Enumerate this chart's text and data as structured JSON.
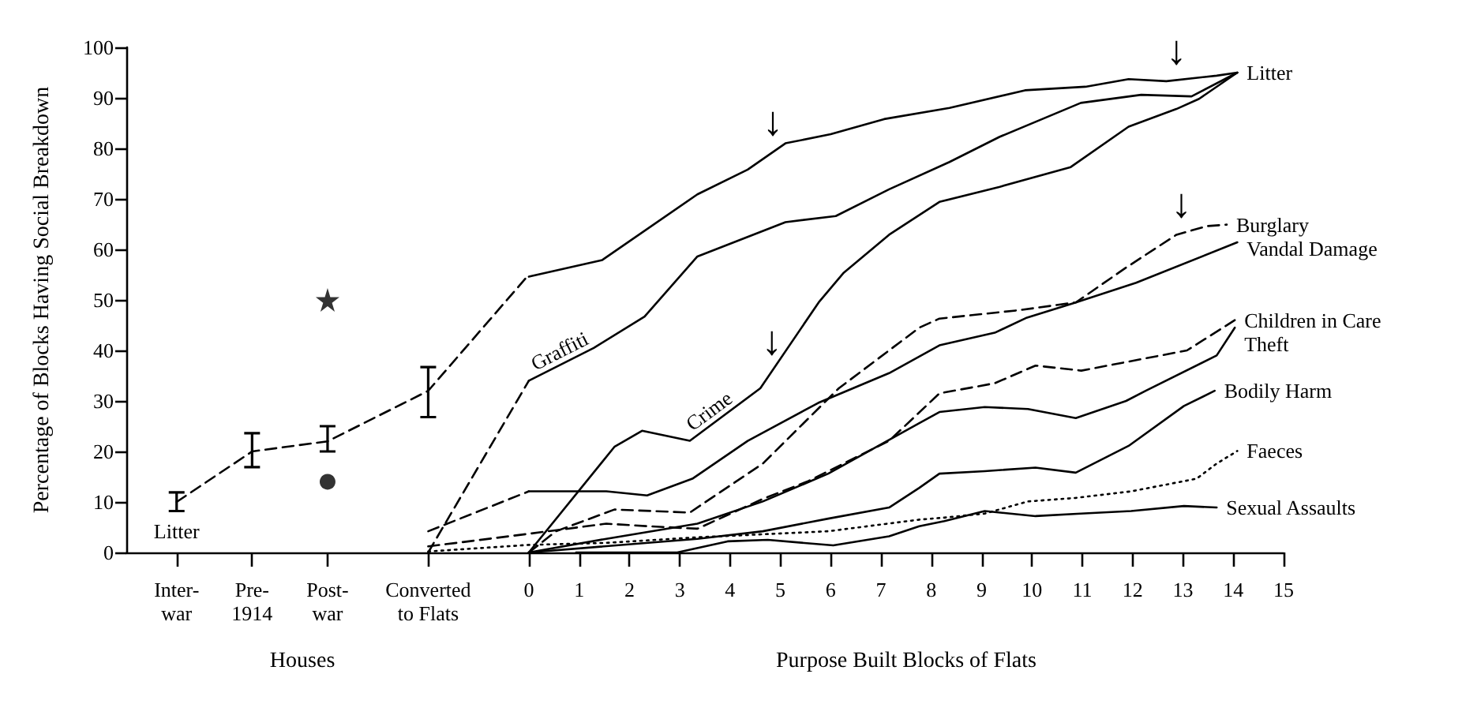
{
  "chart_data": {
    "type": "line",
    "ylabel": "Percentage of Blocks Having Social Breakdown",
    "xlabel": "Purpose Built Blocks of Flats",
    "xlim": [
      -8,
      15
    ],
    "xticks": [
      {
        "value": -7,
        "label": "Inter-\nwar"
      },
      {
        "value": -5.5,
        "label": "Pre-\n1914"
      },
      {
        "value": -4,
        "label": "Post-\nwar"
      },
      {
        "value": -2,
        "label": "Converted\nto Flats"
      },
      0,
      1,
      2,
      3,
      4,
      5,
      6,
      7,
      8,
      9,
      10,
      11,
      12,
      13,
      14,
      15
    ],
    "ylim": [
      0,
      100
    ],
    "yticks": [
      0,
      10,
      20,
      30,
      40,
      50,
      60,
      70,
      80,
      90,
      100
    ],
    "series": [
      {
        "color": "#000000",
        "line_style": "dashed",
        "x": [
          -7,
          -5.5,
          -4,
          -2,
          0
        ],
        "values": [
          10,
          20,
          22,
          32,
          55
        ],
        "errors": [
          [
            8.2,
            11.9
          ],
          [
            16.9,
            23.6
          ],
          [
            20,
            25
          ],
          [
            26.8,
            36.7
          ],
          null
        ]
      },
      {
        "type": "scatter",
        "color": "#000000",
        "marker": "star",
        "x": [
          -4
        ],
        "values": [
          50
        ]
      },
      {
        "type": "scatter",
        "color": "#000000",
        "marker": "circle",
        "x": [
          -4
        ],
        "values": [
          14
        ]
      },
      {
        "color": "#000000",
        "line_style": "dashed",
        "marker": "none",
        "x": [
          -2,
          0
        ],
        "values": [
          0,
          34
        ]
      },
      {
        "color": "#000000",
        "line_style": "dashed",
        "marker": "none",
        "x": [
          -2,
          0
        ],
        "values": [
          4.2,
          12.1
        ]
      },
      {
        "name": "Litter",
        "color": "#000000",
        "line_style": "solid",
        "marker": "none",
        "x": [
          0,
          1.46,
          3.35,
          4.35,
          5.1,
          6.0,
          7.06,
          8.36,
          9.86,
          11.06,
          11.92,
          12.67,
          13.67,
          14.08
        ],
        "values": [
          54.6,
          57.9,
          70.9,
          75.8,
          81,
          82.8,
          85.8,
          88,
          91.5,
          92.2,
          93.7,
          93.3,
          94.4,
          95
        ]
      },
      {
        "color": "#000000",
        "line_style": "solid",
        "marker": "none",
        "x": [
          0,
          1.29,
          2.3,
          3.35,
          5.1,
          6.1,
          7.16,
          8.36,
          9.36,
          10.97,
          12.17,
          13.17,
          14.08
        ],
        "values": [
          34,
          40.5,
          46.7,
          58.6,
          65.4,
          66.6,
          71.9,
          77.3,
          82.3,
          89,
          90.6,
          90.3,
          95
        ]
      },
      {
        "color": "#000000",
        "line_style": "solid",
        "marker": "none",
        "x": [
          0,
          1.7,
          2.25,
          3.2,
          4.6,
          5.76,
          6.26,
          7.16,
          8.16,
          9.36,
          10.77,
          11.92,
          12.87,
          13.32,
          14.08
        ],
        "values": [
          0,
          20.9,
          24.1,
          22.1,
          32.5,
          49.5,
          55.4,
          62.9,
          69.4,
          72.4,
          76.3,
          84.3,
          87.8,
          89.8,
          95
        ]
      },
      {
        "name": "Burglary",
        "color": "#000000",
        "line_style": "dashed",
        "marker": "none",
        "x": [
          0,
          0.54,
          1.7,
          3.2,
          4.65,
          6.16,
          7.76,
          8.16,
          9.77,
          10.87,
          11.87,
          12.87,
          13.47,
          13.87
        ],
        "values": [
          0,
          4.2,
          8.5,
          7.9,
          17.6,
          32.5,
          44.5,
          46.3,
          48,
          49.5,
          56.4,
          62.9,
          64.6,
          64.9
        ]
      },
      {
        "name": "Vandal Damage",
        "color": "#000000",
        "line_style": "solid",
        "marker": "none",
        "x": [
          0,
          1.54,
          2.35,
          3.25,
          4.35,
          5.75,
          7.16,
          8.16,
          9.26,
          9.9,
          10.87,
          12.07,
          14.08
        ],
        "values": [
          12.1,
          12.1,
          11.3,
          14.6,
          22.1,
          29.6,
          35.5,
          41,
          43.5,
          46.5,
          49.5,
          53.4,
          61.4
        ]
      },
      {
        "name": "Children in Care",
        "color": "#000000",
        "line_style": "dashed",
        "marker": "none",
        "x": [
          -2,
          0,
          1.54,
          2.35,
          3.35,
          4.65,
          5.55,
          7.16,
          8.16,
          9.26,
          10.07,
          10.98,
          13.08,
          14.03
        ],
        "values": [
          1.2,
          3.7,
          5.7,
          5.2,
          4.7,
          10.6,
          14.1,
          22.1,
          31.5,
          33.5,
          37,
          36,
          40,
          46
        ]
      },
      {
        "name": "Theft",
        "color": "#000000",
        "line_style": "solid",
        "marker": "none",
        "x": [
          0,
          1.54,
          3.35,
          4.65,
          5.95,
          7.76,
          8.16,
          9.06,
          9.92,
          10.87,
          11.87,
          12.26,
          13.67,
          14.03
        ],
        "values": [
          0,
          2.7,
          5.7,
          10.1,
          15.6,
          25.6,
          27.8,
          28.8,
          28.4,
          26.6,
          30,
          32,
          39,
          44.5
        ]
      },
      {
        "name": "Bodily Harm",
        "color": "#000000",
        "line_style": "solid",
        "marker": "none",
        "x": [
          0,
          3.35,
          4.65,
          5.95,
          7.16,
          7.76,
          8.16,
          9.06,
          10.07,
          10.87,
          11.92,
          13.02,
          13.63
        ],
        "values": [
          0,
          2.7,
          4.2,
          6.7,
          8.9,
          12.8,
          15.6,
          16.1,
          16.8,
          15.8,
          21.1,
          29,
          32
        ]
      },
      {
        "name": "Faeces",
        "color": "#000000",
        "line_style": "dotted",
        "marker": "none",
        "x": [
          -2,
          0,
          1.54,
          3.35,
          5.95,
          7.76,
          8.26,
          9.06,
          9.92,
          10.87,
          11.97,
          13.27,
          13.67,
          14.08
        ],
        "values": [
          0.2,
          1.5,
          1.9,
          3,
          4.2,
          6.5,
          6.9,
          7.7,
          10.1,
          10.8,
          12.1,
          14.6,
          17.6,
          20.1
        ]
      },
      {
        "name": "Sexual Assaults",
        "color": "#000000",
        "line_style": "solid",
        "marker": "none",
        "x": [
          0.94,
          2.95,
          3.95,
          4.75,
          6.05,
          7.16,
          7.76,
          8.26,
          9.06,
          10.07,
          10.97,
          11.97,
          13.02,
          13.67
        ],
        "values": [
          0,
          0,
          2.2,
          2.5,
          1.4,
          3.2,
          5.2,
          6.2,
          8.2,
          7.2,
          7.7,
          8.2,
          9.2,
          8.9
        ]
      }
    ],
    "annotations": [
      "Houses",
      {
        "text": "Litter",
        "x": -7,
        "y": 8.2
      },
      {
        "text": "Graffiti",
        "x": 0.7,
        "y": 37.5
      },
      {
        "text": "Crime",
        "x": 3.7,
        "y": 25.8
      },
      {
        "text": "↓",
        "x": 4.85,
        "y": 79.3
      },
      {
        "text": "↓",
        "x": 4.83,
        "y": 35.9
      },
      {
        "text": "↓",
        "x": 12.87,
        "y": 93.5
      },
      {
        "text": "↓",
        "x": 12.97,
        "y": 63.2
      }
    ]
  }
}
